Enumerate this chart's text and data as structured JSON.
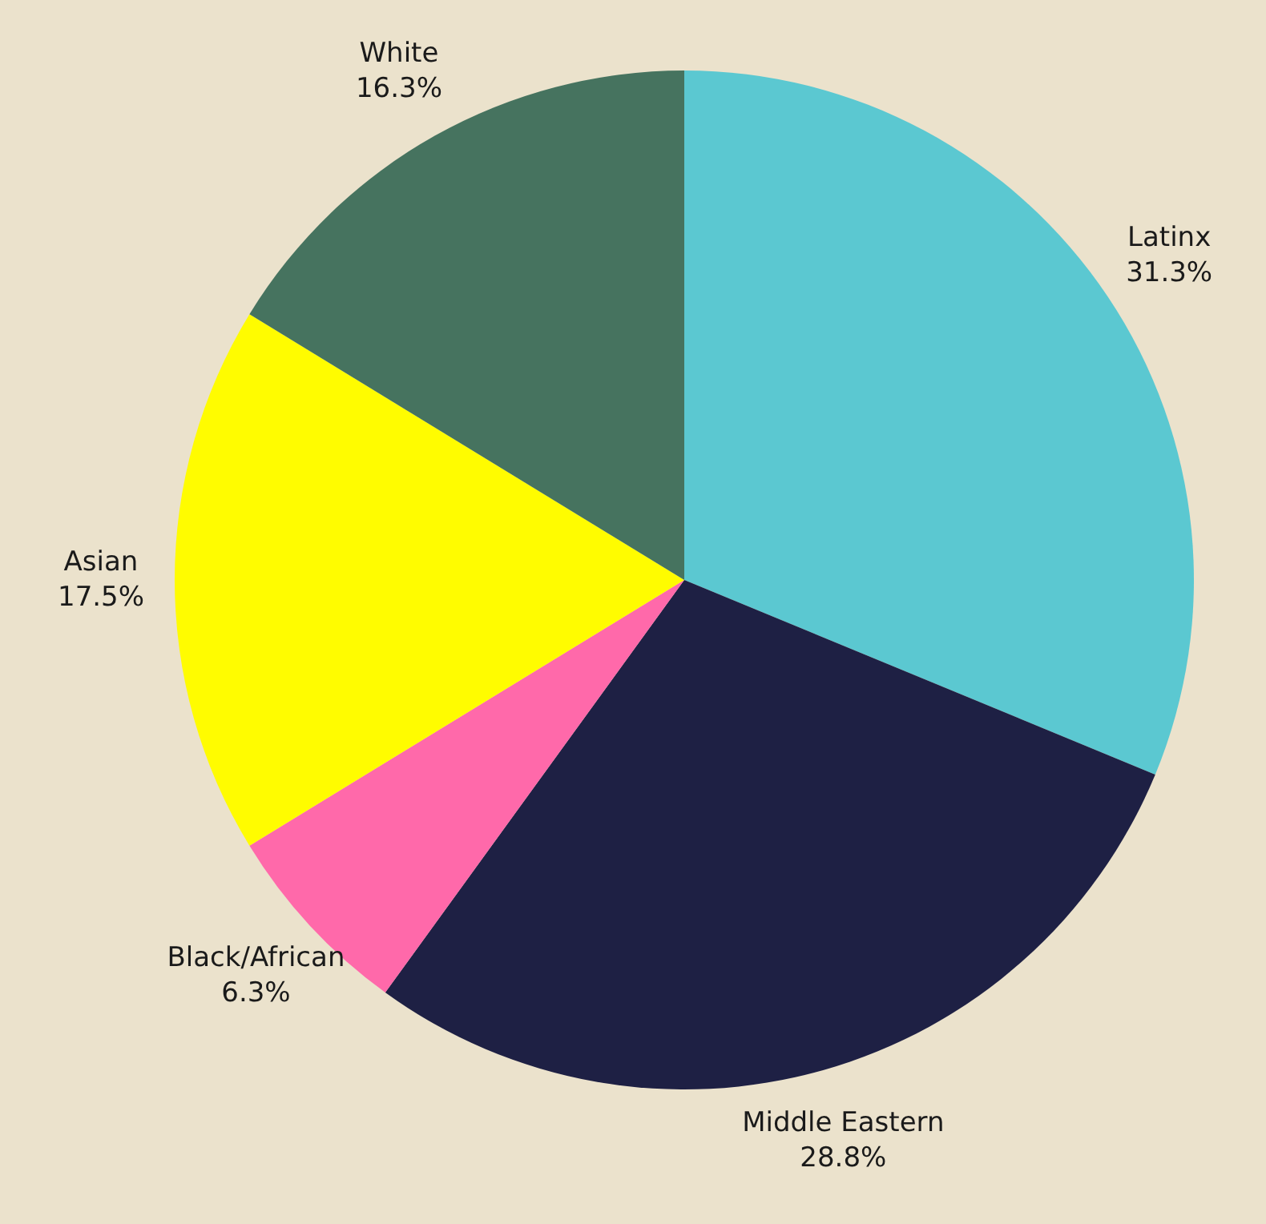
{
  "chart_data": {
    "type": "pie",
    "categories": [
      "Latinx",
      "Middle Eastern",
      "Black/African",
      "Asian",
      "White"
    ],
    "values": [
      31.3,
      28.8,
      6.3,
      17.5,
      16.3
    ],
    "colors": [
      "#5bc8d1",
      "#1e2044",
      "#ff69aa",
      "#fffc00",
      "#46735f"
    ],
    "value_labels": [
      "31.3%",
      "28.8%",
      "6.3%",
      "17.5%",
      "16.3%"
    ]
  }
}
